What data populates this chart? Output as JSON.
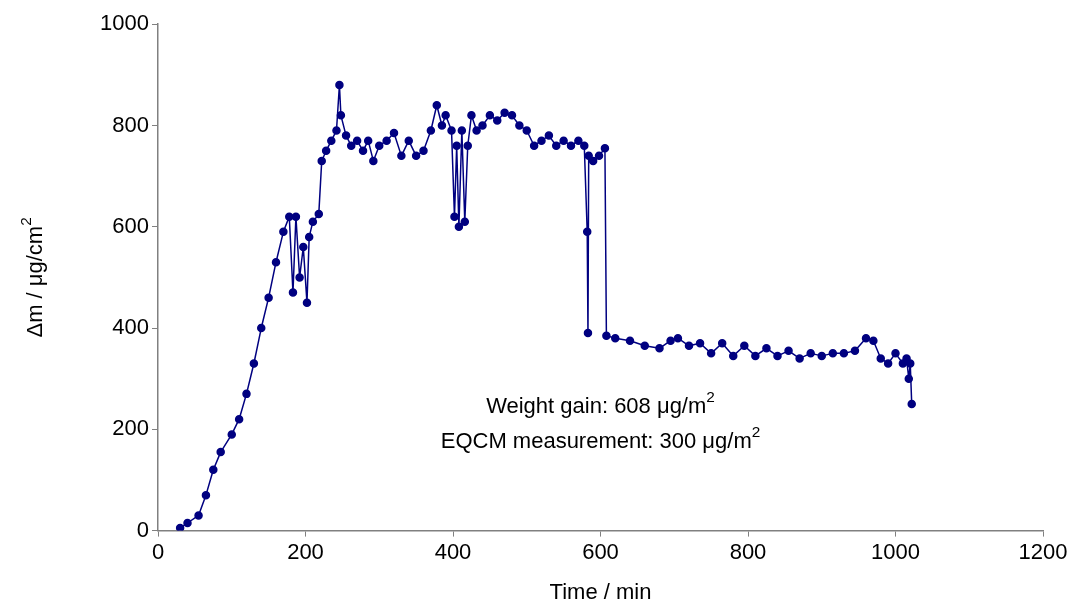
{
  "chart_data": {
    "type": "line",
    "xlabel": "Time / min",
    "ylabel": "Δm / μg/cm$^{2}$",
    "xlim": [
      0,
      1200
    ],
    "xticks": [
      0,
      200,
      400,
      600,
      800,
      1000,
      1200
    ],
    "ylim": [
      0,
      1000
    ],
    "yticks": [
      0,
      200,
      400,
      600,
      800,
      1000
    ],
    "grid": false,
    "legend": false,
    "marker": "circle",
    "line_style": "solid",
    "annotations": [
      "Weight gain: 608 μg/m$^{2}$",
      "EQCM measurement: 300 μg/m$^{2}$"
    ],
    "series": [
      {
        "color": "#000080",
        "x": [
          30,
          40,
          55,
          65,
          75,
          85,
          100,
          110,
          120,
          130,
          140,
          150,
          160,
          170,
          178,
          183,
          187,
          192,
          197,
          202,
          205,
          210,
          218,
          222,
          228,
          235,
          242,
          246,
          248,
          255,
          262,
          270,
          278,
          285,
          292,
          300,
          310,
          320,
          330,
          340,
          350,
          360,
          370,
          378,
          385,
          390,
          398,
          402,
          405,
          408,
          412,
          416,
          420,
          425,
          432,
          440,
          450,
          460,
          470,
          480,
          490,
          500,
          510,
          520,
          530,
          540,
          550,
          560,
          570,
          578,
          582,
          583,
          584,
          590,
          598,
          606,
          608,
          620,
          640,
          660,
          680,
          695,
          705,
          720,
          735,
          750,
          765,
          780,
          795,
          810,
          825,
          840,
          855,
          870,
          885,
          900,
          915,
          930,
          945,
          960,
          970,
          980,
          990,
          1000,
          1010,
          1015,
          1018,
          1020,
          1022
        ],
        "values": [
          5,
          15,
          30,
          70,
          120,
          155,
          190,
          220,
          270,
          330,
          400,
          460,
          530,
          590,
          620,
          470,
          620,
          500,
          560,
          450,
          580,
          610,
          625,
          730,
          750,
          770,
          790,
          880,
          820,
          780,
          760,
          770,
          750,
          770,
          730,
          760,
          770,
          785,
          740,
          770,
          740,
          750,
          790,
          840,
          800,
          820,
          790,
          620,
          760,
          600,
          790,
          610,
          760,
          820,
          790,
          800,
          820,
          810,
          825,
          820,
          800,
          790,
          760,
          770,
          780,
          760,
          770,
          760,
          770,
          760,
          590,
          390,
          740,
          730,
          740,
          755,
          385,
          380,
          375,
          365,
          360,
          375,
          380,
          365,
          370,
          350,
          370,
          345,
          365,
          345,
          360,
          345,
          355,
          340,
          350,
          345,
          350,
          350,
          355,
          380,
          375,
          340,
          330,
          350,
          330,
          340,
          300,
          330,
          250
        ]
      }
    ]
  }
}
